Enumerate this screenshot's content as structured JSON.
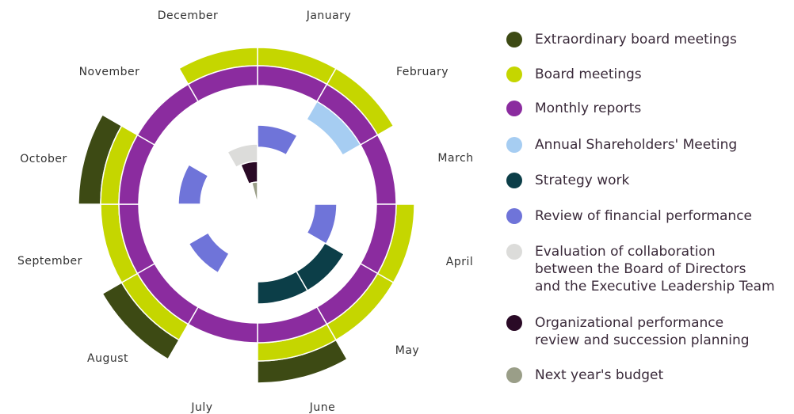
{
  "months": [
    "January",
    "February",
    "March",
    "April",
    "May",
    "June",
    "July",
    "August",
    "September",
    "October",
    "November",
    "December"
  ],
  "legend": [
    {
      "lines": [
        "Extraordinary board meetings"
      ],
      "color": "#3d4a14"
    },
    {
      "lines": [
        "Board meetings"
      ],
      "color": "#c5d600"
    },
    {
      "lines": [
        "Monthly reports"
      ],
      "color": "#8b2c9f"
    },
    {
      "lines": [
        "Annual Shareholders' Meeting"
      ],
      "color": "#a6cdf2"
    },
    {
      "lines": [
        "Strategy work"
      ],
      "color": "#0c3e48"
    },
    {
      "lines": [
        "Review of financial performance"
      ],
      "color": "#6f74d9"
    },
    {
      "lines": [
        "Evaluation of collaboration",
        "between the Board of Directors",
        "and the Executive Leadership Team"
      ],
      "color": "#dcdcda"
    },
    {
      "lines": [
        "Organizational performance",
        "review and succession planning"
      ],
      "color": "#2a0a26"
    },
    {
      "lines": [
        "Next year's budget"
      ],
      "color": "#9a9e88"
    }
  ]
}
